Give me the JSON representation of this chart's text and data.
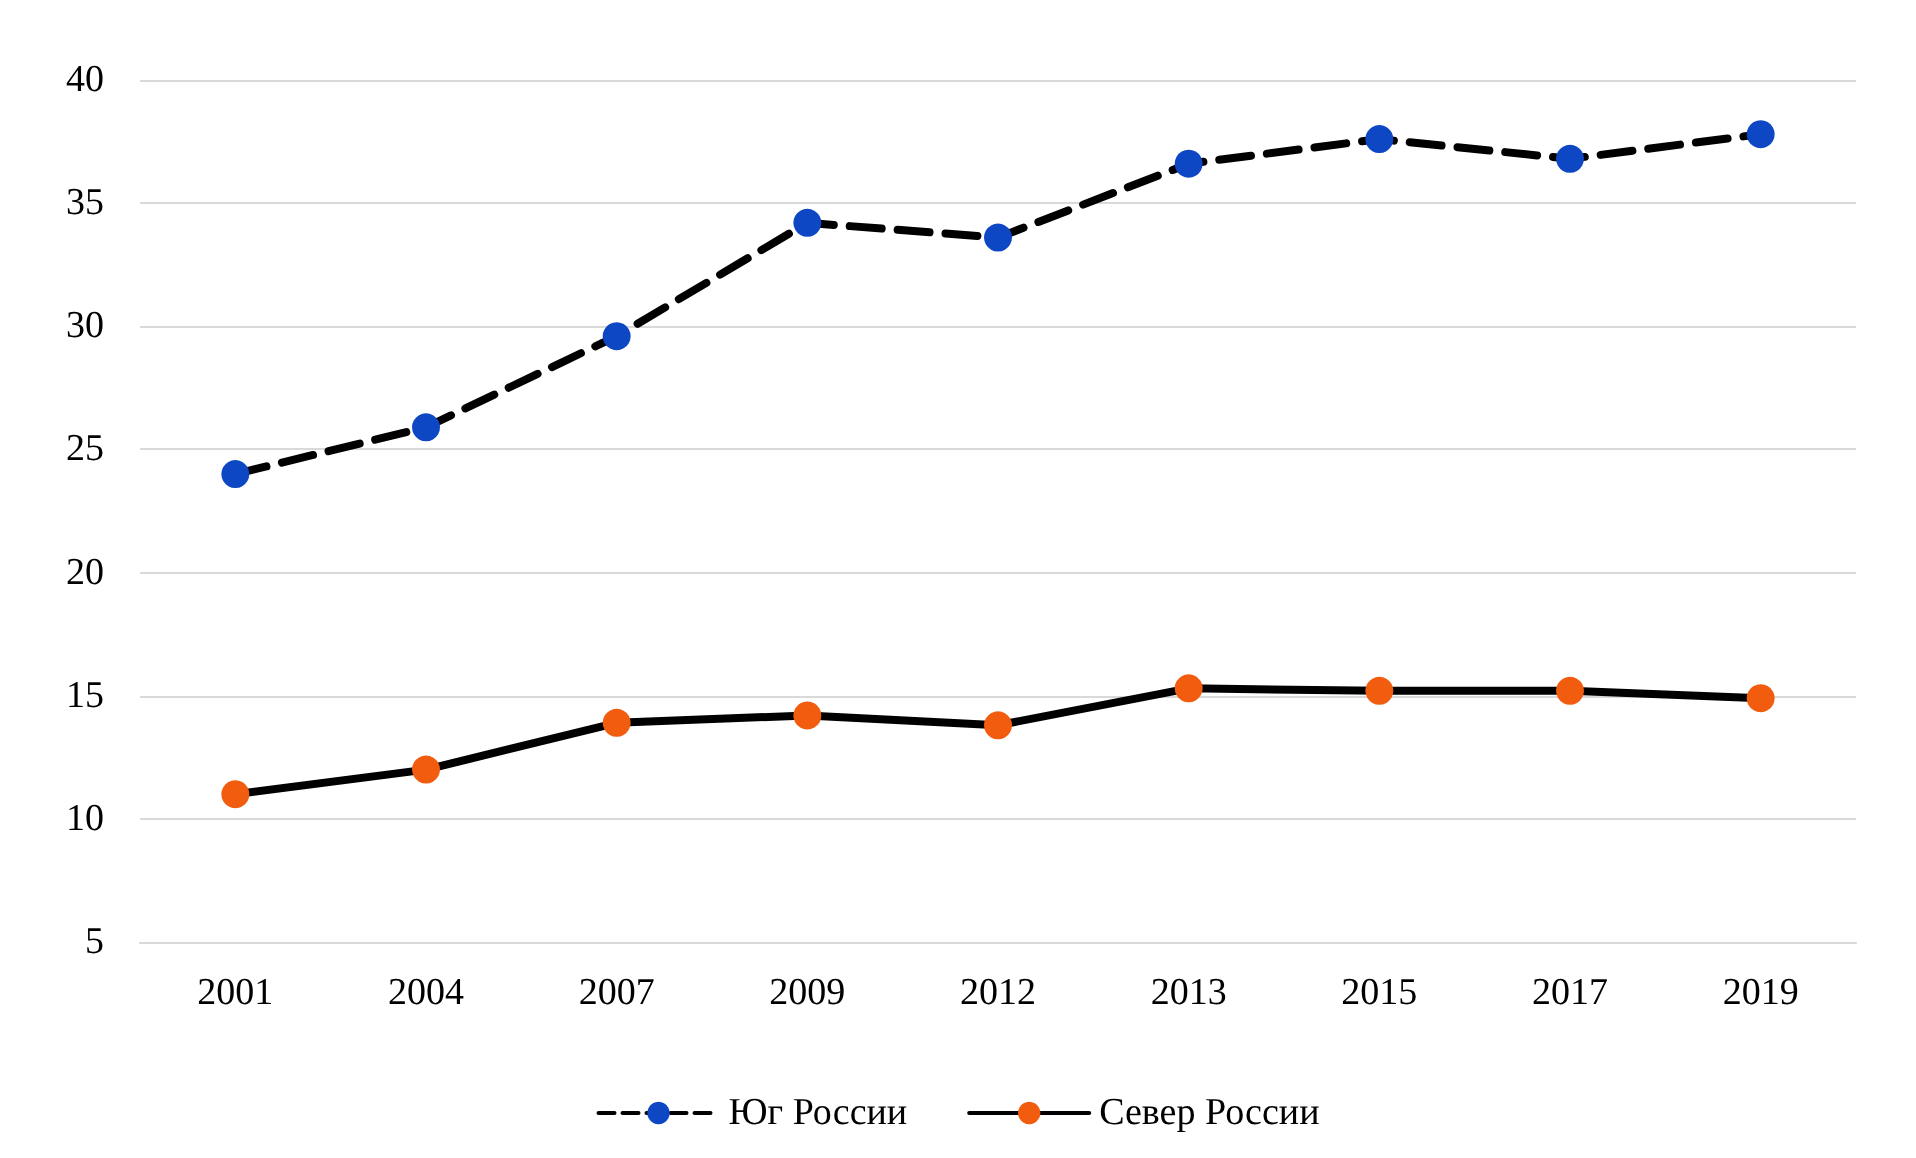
{
  "chart_data": {
    "type": "line",
    "categories": [
      "2001",
      "2004",
      "2007",
      "2009",
      "2012",
      "2013",
      "2015",
      "2017",
      "2019"
    ],
    "series": [
      {
        "name": "Юг России",
        "color": "#0d47c4",
        "line_style": "dashed",
        "values": [
          24.0,
          25.9,
          29.6,
          34.2,
          33.6,
          36.6,
          37.6,
          36.8,
          37.8
        ]
      },
      {
        "name": "Север России",
        "color": "#f25c0f",
        "line_style": "solid",
        "values": [
          11.0,
          12.0,
          13.9,
          14.2,
          13.8,
          15.3,
          15.2,
          15.2,
          14.9
        ]
      }
    ],
    "ylim": [
      5,
      40
    ],
    "yticks": [
      5,
      10,
      15,
      20,
      25,
      30,
      35,
      40
    ],
    "grid": "y",
    "legend": "bottom",
    "marker": "circle"
  }
}
